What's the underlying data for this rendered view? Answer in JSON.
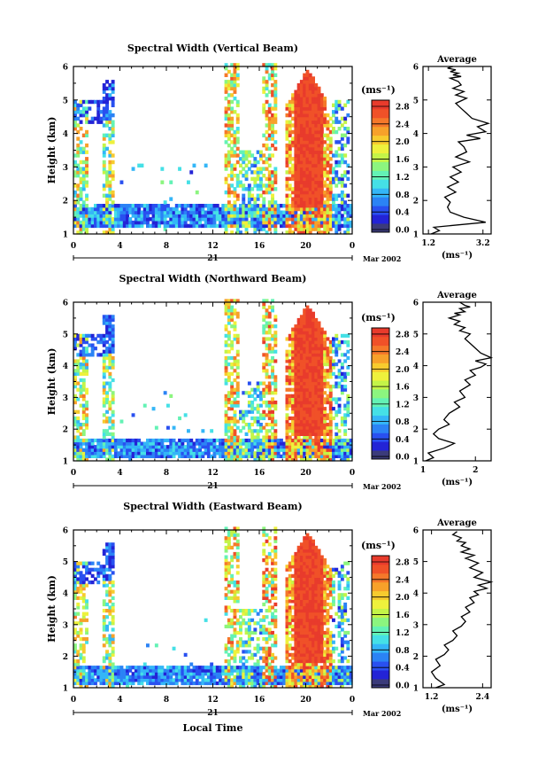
{
  "figure": {
    "xlabel_bottom": "Local Time",
    "date_label": "Mar 2002",
    "day_label": "21",
    "average_title": "Average",
    "unit_label": "(ms⁻¹)",
    "colorbar_ticks": [
      "0.0",
      "0.4",
      "0.8",
      "1.2",
      "1.6",
      "2.0",
      "2.4",
      "2.8"
    ],
    "colorbar_colors": [
      "#3b3b7a",
      "#2323d6",
      "#2950f0",
      "#2b83f5",
      "#34b6f7",
      "#45e0e6",
      "#63f2b5",
      "#8cf57f",
      "#c4f448",
      "#eef13c",
      "#f7cb2e",
      "#f7a12a",
      "#f5782a",
      "#f05128",
      "#e83b2c"
    ],
    "panels": [
      {
        "title": "Spectral Width (Vertical Beam)",
        "ylabel": "Height (km)"
      },
      {
        "title": "Spectral Width (Northward Beam)",
        "ylabel": "Height (km)"
      },
      {
        "title": "Spectral Width (Eastward Beam)",
        "ylabel": "Height (km)"
      }
    ]
  },
  "chart_data": [
    {
      "type": "heatmap",
      "title": "Spectral Width (Vertical Beam)",
      "xlabel": "",
      "ylabel": "Height (km)",
      "x_ticks": [
        "0",
        "4",
        "8",
        "12",
        "16",
        "20",
        "0"
      ],
      "y_ticks": [
        "1",
        "2",
        "3",
        "4",
        "5",
        "6"
      ],
      "xlim": [
        0,
        24
      ],
      "ylim": [
        1,
        6
      ],
      "colorbar_range": [
        0.0,
        3.0
      ]
    },
    {
      "type": "line",
      "title": "Average",
      "xlabel": "(ms⁻¹)",
      "ylabel": "",
      "x_ticks": [
        "1.2",
        "3.2"
      ],
      "xlim": [
        1.0,
        3.5
      ],
      "ylim": [
        1,
        6
      ],
      "y_ticks": [
        "1",
        "2",
        "3",
        "4",
        "5",
        "6"
      ],
      "series": [
        {
          "x": [
            1.3,
            1.6,
            1.4,
            3.3,
            2.5,
            2.0,
            1.9,
            2.0,
            1.8,
            2.2,
            1.9,
            2.3,
            2.0,
            2.4,
            2.1,
            2.7,
            2.2,
            2.6,
            2.5,
            2.3,
            3.1,
            2.6,
            3.3,
            3.0,
            3.4,
            2.8,
            2.6,
            2.4,
            2.2,
            2.6,
            2.2,
            2.5,
            2.1,
            2.4,
            2.3,
            2.0,
            2.4,
            2.1,
            2.3,
            2.0,
            2.2,
            1.9,
            2.1
          ],
          "y": [
            1.0,
            1.1,
            1.2,
            1.35,
            1.5,
            1.65,
            1.8,
            1.95,
            2.1,
            2.25,
            2.4,
            2.55,
            2.7,
            2.85,
            3.0,
            3.15,
            3.3,
            3.45,
            3.6,
            3.75,
            3.85,
            3.95,
            4.05,
            4.2,
            4.3,
            4.45,
            4.6,
            4.75,
            4.9,
            5.05,
            5.15,
            5.25,
            5.35,
            5.45,
            5.55,
            5.65,
            5.7,
            5.75,
            5.8,
            5.85,
            5.9,
            5.95,
            6.0
          ]
        }
      ]
    },
    {
      "type": "heatmap",
      "title": "Spectral Width (Northward Beam)",
      "xlabel": "",
      "ylabel": "Height (km)",
      "x_ticks": [
        "0",
        "4",
        "8",
        "12",
        "16",
        "20",
        "0"
      ],
      "y_ticks": [
        "1",
        "2",
        "3",
        "4",
        "5",
        "6"
      ],
      "xlim": [
        0,
        24
      ],
      "ylim": [
        1,
        6
      ],
      "colorbar_range": [
        0.0,
        3.0
      ]
    },
    {
      "type": "line",
      "title": "Average",
      "xlabel": "(ms⁻¹)",
      "ylabel": "",
      "x_ticks": [
        "1",
        "2"
      ],
      "xlim": [
        1.0,
        2.3
      ],
      "ylim": [
        1,
        6
      ],
      "y_ticks": [
        "1",
        "2",
        "3",
        "4",
        "5",
        "6"
      ],
      "series": [
        {
          "x": [
            1.05,
            1.2,
            1.1,
            1.4,
            1.6,
            1.3,
            1.2,
            1.3,
            1.5,
            1.4,
            1.5,
            1.7,
            1.6,
            1.8,
            1.7,
            1.9,
            1.8,
            2.0,
            1.9,
            2.1,
            2.2,
            2.0,
            2.3,
            2.1,
            2.0,
            1.9,
            1.8,
            1.9,
            1.7,
            1.8,
            1.6,
            1.7,
            1.5,
            1.7,
            1.6,
            1.8,
            1.7,
            1.9,
            1.8,
            1.7
          ],
          "y": [
            1.0,
            1.1,
            1.25,
            1.4,
            1.55,
            1.7,
            1.85,
            2.0,
            2.15,
            2.3,
            2.5,
            2.7,
            2.85,
            3.0,
            3.2,
            3.4,
            3.55,
            3.7,
            3.85,
            3.95,
            4.05,
            4.15,
            4.25,
            4.4,
            4.55,
            4.7,
            4.85,
            5.0,
            5.1,
            5.2,
            5.3,
            5.4,
            5.5,
            5.6,
            5.65,
            5.7,
            5.8,
            5.85,
            5.9,
            6.0
          ]
        }
      ]
    },
    {
      "type": "heatmap",
      "title": "Spectral Width (Eastward Beam)",
      "xlabel": "Local Time",
      "ylabel": "Height (km)",
      "x_ticks": [
        "0",
        "4",
        "8",
        "12",
        "16",
        "20",
        "0"
      ],
      "y_ticks": [
        "1",
        "2",
        "3",
        "4",
        "5",
        "6"
      ],
      "xlim": [
        0,
        24
      ],
      "ylim": [
        1,
        6
      ],
      "colorbar_range": [
        0.0,
        3.0
      ]
    },
    {
      "type": "line",
      "title": "Average",
      "xlabel": "(ms⁻¹)",
      "ylabel": "",
      "x_ticks": [
        "1.2",
        "2.4"
      ],
      "xlim": [
        1.0,
        2.6
      ],
      "ylim": [
        1,
        6
      ],
      "y_ticks": [
        "1",
        "2",
        "3",
        "4",
        "5",
        "6"
      ],
      "series": [
        {
          "x": [
            1.3,
            1.5,
            1.3,
            1.2,
            1.4,
            1.3,
            1.5,
            1.6,
            1.5,
            1.7,
            1.8,
            1.7,
            1.9,
            2.0,
            1.9,
            2.1,
            2.0,
            2.2,
            2.1,
            2.3,
            2.2,
            2.5,
            2.3,
            2.6,
            2.2,
            2.4,
            2.1,
            2.3,
            2.0,
            2.2,
            1.9,
            2.1,
            1.9,
            2.0,
            1.8,
            1.9,
            1.7,
            1.8
          ],
          "y": [
            1.0,
            1.1,
            1.3,
            1.5,
            1.7,
            1.9,
            2.05,
            2.2,
            2.35,
            2.5,
            2.65,
            2.8,
            2.95,
            3.1,
            3.25,
            3.4,
            3.55,
            3.7,
            3.85,
            3.95,
            4.05,
            4.15,
            4.25,
            4.35,
            4.5,
            4.65,
            4.8,
            4.95,
            5.1,
            5.2,
            5.3,
            5.4,
            5.5,
            5.6,
            5.65,
            5.75,
            5.85,
            5.95
          ]
        }
      ]
    }
  ]
}
